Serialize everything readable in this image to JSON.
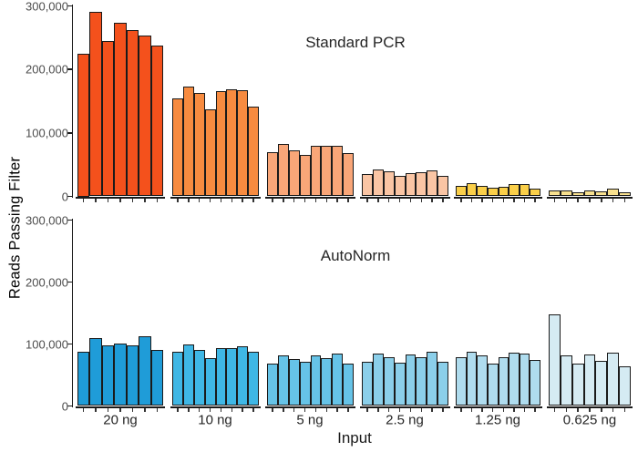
{
  "figure": {
    "background": "#ffffff",
    "bar_outline_color": "#1a1a1a",
    "tick_label_color": "#4d4d4d"
  },
  "chart_data": {
    "type": "bar",
    "title": "",
    "xlabel": "Input",
    "ylabel": "Reads Passing Filter",
    "ylim": [
      0,
      300000
    ],
    "grid": false,
    "legend": "none",
    "ytick_labels": [
      "300,000",
      "200,000",
      "100,000",
      "0"
    ],
    "ytick_values": [
      300000,
      200000,
      100000,
      0
    ],
    "categories": [
      "20 ng",
      "10 ng",
      "5 ng",
      "2.5 ng",
      "1.25 ng",
      "0.625 ng"
    ],
    "panels": [
      {
        "title": "Standard PCR",
        "groups": [
          {
            "category": "20 ng",
            "color": "#F4511C",
            "values": [
              225000,
              290000,
              245000,
              273000,
              262000,
              254000,
              238000
            ]
          },
          {
            "category": "10 ng",
            "color": "#F78B40",
            "values": [
              155000,
              173000,
              163000,
              137000,
              166000,
              169000,
              167000,
              142000
            ]
          },
          {
            "category": "5 ng",
            "color": "#F9A678",
            "values": [
              69000,
              82000,
              73000,
              66000,
              79000,
              79000,
              80000,
              68000
            ]
          },
          {
            "category": "2.5 ng",
            "color": "#FAC5A4",
            "values": [
              35000,
              42000,
              39000,
              33000,
              36000,
              38000,
              41000,
              32000
            ]
          },
          {
            "category": "1.25 ng",
            "color": "#FACF49",
            "values": [
              17000,
              21000,
              17000,
              13000,
              15000,
              19000,
              19000,
              12000
            ]
          },
          {
            "category": "0.625 ng",
            "color": "#F8E08E",
            "values": [
              10000,
              9000,
              7000,
              9500,
              8000,
              12000,
              6000
            ]
          }
        ]
      },
      {
        "title": "AutoNorm",
        "groups": [
          {
            "category": "20 ng",
            "color": "#1F9CD8",
            "values": [
              88000,
              110000,
              98000,
              101000,
              98000,
              112000,
              90000
            ]
          },
          {
            "category": "10 ng",
            "color": "#3FB7E5",
            "values": [
              87000,
              99000,
              91000,
              77000,
              93000,
              94000,
              96000,
              87000
            ]
          },
          {
            "category": "5 ng",
            "color": "#66C3E7",
            "values": [
              68000,
              81000,
              76000,
              71000,
              81000,
              77000,
              84000,
              68000
            ]
          },
          {
            "category": "2.5 ng",
            "color": "#8BCFEA",
            "values": [
              72000,
              84000,
              78000,
              70000,
              83000,
              78000,
              88000,
              72000
            ]
          },
          {
            "category": "1.25 ng",
            "color": "#AFDCEE",
            "values": [
              79000,
              87000,
              81000,
              68000,
              79000,
              86000,
              85000,
              74000
            ]
          },
          {
            "category": "0.625 ng",
            "color": "#D5EBF3",
            "values": [
              148000,
              81000,
              68000,
              83000,
              73000,
              86000,
              64000
            ]
          }
        ]
      }
    ]
  }
}
